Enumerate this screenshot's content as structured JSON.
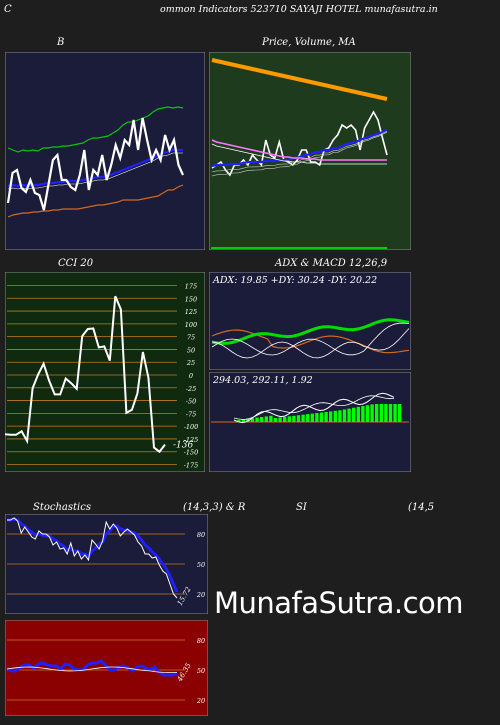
{
  "header": {
    "left_letter": "C",
    "title": "ommon  Indicators 523710  SAYAJI HOTEL  munafasutra.in"
  },
  "watermark": "MunafaSutra.com",
  "colors": {
    "navy": "#1b1b3a",
    "green_panel": "#1e3b1e",
    "red_panel": "#8b0000",
    "cci_bg": "#0f2a0f",
    "grid_orange": "#c8781e",
    "white": "#ffffff",
    "blue": "#2020ff",
    "green_line": "#00cc00",
    "orange": "#d2691e"
  },
  "chart_data": [
    {
      "id": "bollinger",
      "type": "line",
      "title": "B",
      "series": [
        {
          "color": "#00cc00",
          "values": [
            148,
            150,
            152,
            150,
            151,
            150,
            151,
            148,
            148,
            147,
            147,
            146,
            146,
            145,
            144,
            143,
            140,
            138,
            138,
            137,
            136,
            133,
            130,
            125,
            122,
            122,
            120,
            118,
            116,
            112,
            109,
            108,
            107,
            108,
            107,
            108
          ]
        },
        {
          "color": "#2020ff",
          "values": [
            186,
            185,
            186,
            185,
            186,
            185,
            185,
            184,
            183,
            183,
            182,
            182,
            181,
            181,
            181,
            180,
            179,
            178,
            177,
            177,
            176,
            174,
            172,
            170,
            168,
            166,
            164,
            162,
            160,
            158,
            155,
            153,
            152,
            150,
            150,
            150
          ]
        },
        {
          "color": "#d2691e",
          "values": [
            217,
            215,
            214,
            213,
            213,
            212,
            212,
            211,
            211,
            210,
            210,
            209,
            209,
            209,
            209,
            208,
            207,
            206,
            205,
            205,
            204,
            203,
            202,
            200,
            200,
            200,
            200,
            199,
            198,
            197,
            196,
            193,
            190,
            190,
            187,
            185
          ]
        },
        {
          "color": "#ffffff",
          "values": [
            203,
            173,
            170,
            188,
            192,
            180,
            193,
            195,
            210,
            185,
            160,
            155,
            180,
            180,
            187,
            190,
            175,
            150,
            190,
            170,
            175,
            155,
            180,
            165,
            145,
            158,
            140,
            145,
            120,
            150,
            118,
            140,
            160,
            150,
            160,
            135,
            150,
            140,
            165,
            175
          ]
        }
      ]
    },
    {
      "id": "price_ma",
      "type": "line",
      "title": "Price,  Volume,  MA",
      "series": [
        {
          "color": "#ff9900",
          "values": [
            60,
            61,
            62,
            63,
            64,
            65,
            66,
            67,
            68,
            69,
            70,
            71,
            72,
            73,
            74,
            75,
            76,
            77,
            78,
            79,
            80,
            81,
            82,
            83,
            84,
            85,
            86,
            87,
            88,
            89,
            90,
            91,
            92,
            93,
            94,
            95,
            96,
            97,
            98,
            99
          ]
        },
        {
          "color": "#ffffff",
          "values": [
            168,
            165,
            162,
            170,
            175,
            165,
            165,
            160,
            165,
            155,
            160,
            165,
            140,
            155,
            158,
            142,
            160,
            162,
            165,
            160,
            150,
            150,
            162,
            162,
            165,
            150,
            148,
            140,
            135,
            125,
            128,
            125,
            130,
            150,
            128,
            120,
            112,
            120,
            138,
            155
          ]
        },
        {
          "color": "#2020ff",
          "values": [
            166,
            165,
            165,
            165,
            164,
            164,
            164,
            163,
            162,
            162,
            162,
            162,
            161,
            161,
            161,
            160,
            160,
            160,
            158,
            158,
            156,
            155,
            154,
            152,
            152,
            150,
            150,
            148,
            148,
            146,
            144,
            143,
            142,
            140,
            138,
            137,
            135,
            134,
            132,
            130
          ]
        },
        {
          "color": "#ff77ff",
          "values": [
            140,
            142,
            143,
            144,
            145,
            146,
            147,
            148,
            149,
            150,
            151,
            152,
            153,
            154,
            155,
            156,
            157,
            157,
            158,
            158,
            158,
            159,
            159,
            159,
            160,
            160,
            160,
            160,
            160,
            160,
            160,
            160,
            160,
            160,
            160,
            160,
            160,
            160,
            160,
            160
          ]
        }
      ]
    },
    {
      "id": "cci",
      "type": "line",
      "title": "CCI 20",
      "yticks": [
        175,
        150,
        125,
        100,
        75,
        50,
        25,
        0,
        -25,
        -50,
        -75,
        -100,
        -125,
        -150,
        -175
      ],
      "ylim": [
        -187,
        187
      ],
      "last_value": "-136",
      "values": [
        -116,
        -117,
        -117,
        -110,
        -129,
        -26,
        1,
        22,
        -11,
        -38,
        -38,
        -7,
        -16,
        -27,
        76,
        90,
        91,
        54,
        56,
        28,
        154,
        128,
        -74,
        -68,
        -36,
        45,
        -5,
        -142,
        -150,
        -136
      ]
    },
    {
      "id": "adx",
      "type": "line",
      "title": "ADX  & MACD 12,26,9",
      "label": "ADX: 19.85  +DY: 30.24  -DY: 20.22"
    },
    {
      "id": "macd",
      "type": "bar",
      "label": "294.03,  292.11,  1.92"
    },
    {
      "id": "stochastics",
      "type": "line",
      "title_left": "Stochastics",
      "title_mid": "(14,3,3) & R",
      "yticks": [
        80,
        50,
        20
      ],
      "ylim": [
        0,
        100
      ],
      "last_value": "15.72",
      "k": [
        94,
        94,
        96,
        93,
        81,
        87,
        82,
        77,
        75,
        83,
        80,
        80,
        77,
        69,
        72,
        65,
        66,
        60,
        71,
        58,
        63,
        55,
        59,
        54,
        74,
        70,
        65,
        73,
        92,
        85,
        90,
        86,
        78,
        82,
        85,
        82,
        79,
        72,
        68,
        60,
        60,
        56,
        57,
        49,
        43,
        40,
        30,
        20,
        16
      ],
      "d": [
        94,
        94,
        95,
        94,
        90,
        88,
        84,
        82,
        79,
        80,
        79,
        78,
        78,
        75,
        73,
        70,
        68,
        64,
        65,
        63,
        63,
        60,
        60,
        58,
        63,
        66,
        70,
        72,
        80,
        83,
        88,
        88,
        85,
        84,
        83,
        82,
        81,
        78,
        74,
        69,
        66,
        62,
        59,
        55,
        50,
        45,
        38,
        30,
        22
      ]
    },
    {
      "id": "rsi",
      "type": "line",
      "title_left": "SI",
      "title_right": "(14,5",
      "yticks": [
        80,
        50,
        20
      ],
      "ylim": [
        0,
        100
      ],
      "last_value": "46.35",
      "values": [
        52,
        49,
        49,
        53,
        55,
        55,
        52,
        56,
        57,
        55,
        54,
        54,
        51,
        56,
        55,
        51,
        50,
        50,
        55,
        57,
        57,
        59,
        55,
        50,
        50,
        53,
        54,
        52,
        49,
        53,
        54,
        52,
        50,
        53,
        48,
        45,
        45,
        45,
        46
      ]
    }
  ]
}
